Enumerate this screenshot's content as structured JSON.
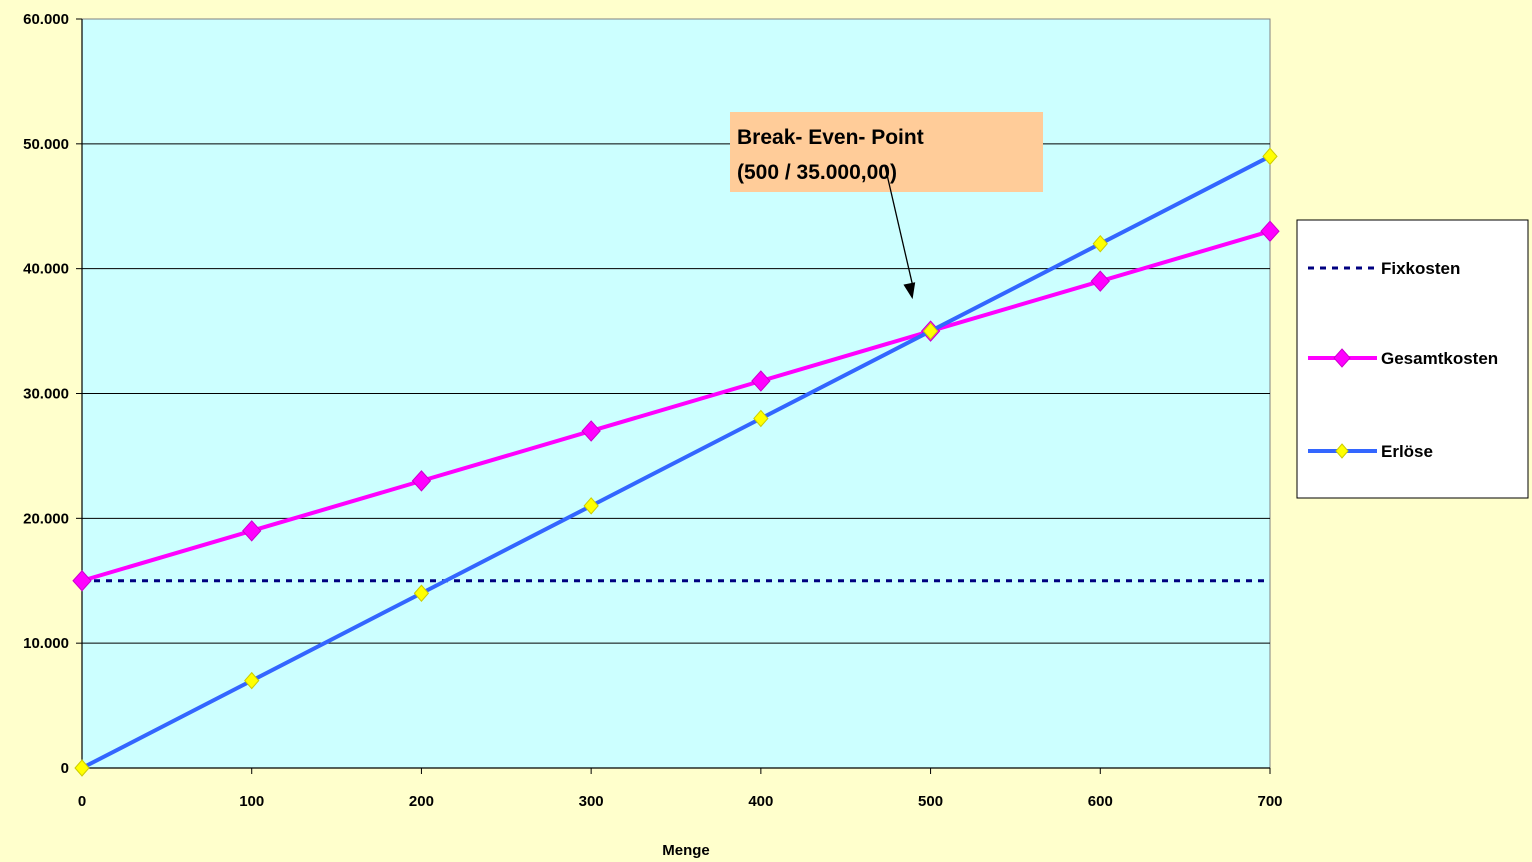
{
  "chart_data": {
    "type": "line",
    "title": "",
    "xlabel": "Menge",
    "ylabel": "",
    "xlim": [
      0,
      700
    ],
    "ylim": [
      0,
      60000
    ],
    "x_ticks": [
      0,
      100,
      200,
      300,
      400,
      500,
      600,
      700
    ],
    "x_tick_labels": [
      "0",
      "100",
      "200",
      "300",
      "400",
      "500",
      "600",
      "700"
    ],
    "y_ticks": [
      0,
      10000,
      20000,
      30000,
      40000,
      50000,
      60000
    ],
    "y_tick_labels": [
      "0",
      "10.000",
      "20.000",
      "30.000",
      "40.000",
      "50.000",
      "60.000"
    ],
    "grid": "horizontal",
    "legend_position": "right",
    "series": [
      {
        "name": "Fixkosten",
        "color": "#000080",
        "style": "dashed",
        "marker": "none",
        "x": [
          0,
          700
        ],
        "y": [
          15000,
          15000
        ]
      },
      {
        "name": "Gesamtkosten",
        "color": "#ff00ff",
        "style": "solid",
        "marker": "diamond",
        "marker_color": "#ff00ff",
        "x": [
          0,
          100,
          200,
          300,
          400,
          500,
          600,
          700
        ],
        "y": [
          15000,
          19000,
          23000,
          27000,
          31000,
          35000,
          39000,
          43000
        ]
      },
      {
        "name": "Erlöse",
        "color": "#3366ff",
        "style": "solid",
        "marker": "diamond",
        "marker_color": "#ffff00",
        "x": [
          0,
          100,
          200,
          300,
          400,
          500,
          600,
          700
        ],
        "y": [
          0,
          7000,
          14000,
          21000,
          28000,
          35000,
          42000,
          49000
        ]
      }
    ],
    "annotations": [
      {
        "lines": [
          "Break- Even- Point",
          "(500 / 35.000,00)"
        ],
        "point": [
          500,
          35000
        ],
        "box_color": "#ffcc99"
      }
    ],
    "colors": {
      "page_background": "#ffffcc",
      "plot_background": "#ccffff",
      "gridline": "#000000"
    }
  }
}
